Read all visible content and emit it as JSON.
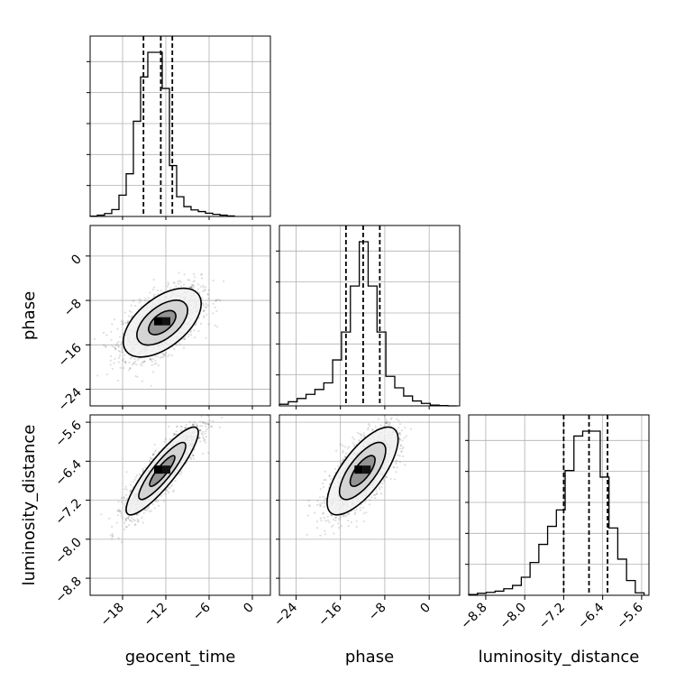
{
  "chart_data": {
    "type": "corner",
    "parameters": [
      {
        "name": "geocent_time",
        "range": [
          -22.5,
          2.5
        ],
        "ticks": [
          "−18",
          "−12",
          "−6",
          "0"
        ],
        "tick_values": [
          -18,
          -12,
          -6,
          0
        ],
        "quantiles": [
          -15.1,
          -12.7,
          -11.1
        ],
        "hist_bins": [
          -22.5,
          -21.5,
          -20.5,
          -19.5,
          -18.5,
          -17.5,
          -16.5,
          -15.5,
          -14.5,
          -13.5,
          -12.5,
          -11.5,
          -10.5,
          -9.5,
          -8.5,
          -7.5,
          -6.5,
          -5.5,
          -4.5,
          -3.5,
          -2.5
        ],
        "hist_counts": [
          0.2,
          0.8,
          1.8,
          4.2,
          13,
          26,
          58,
          85,
          100,
          100,
          78,
          31,
          12,
          6,
          4,
          3,
          2,
          1.3,
          0.8,
          0.3
        ]
      },
      {
        "name": "phase",
        "range": [
          -27,
          5.5
        ],
        "ticks": [
          "−24",
          "−16",
          "−8",
          "0"
        ],
        "tick_values": [
          -24,
          -16,
          -8,
          0
        ],
        "quantiles": [
          -15.0,
          -11.9,
          -8.9
        ],
        "hist_bins": [
          -27,
          -25.4,
          -23.8,
          -22.2,
          -20.6,
          -19,
          -17.4,
          -15.8,
          -14.2,
          -12.6,
          -11,
          -9.4,
          -7.8,
          -6.2,
          -4.6,
          -3,
          -1.4,
          0.2,
          1.8,
          3.4,
          5
        ],
        "hist_counts": [
          1,
          2.5,
          4.5,
          7,
          10,
          14,
          28,
          45,
          73,
          100,
          73,
          45,
          18,
          11,
          6,
          3,
          1.5,
          0.5,
          0.2,
          0
        ]
      },
      {
        "name": "luminosity_distance",
        "range": [
          -9.15,
          -5.45
        ],
        "ticks": [
          "−8.8",
          "−8.0",
          "−7.2",
          "−6.4",
          "−5.6"
        ],
        "tick_values": [
          -8.8,
          -8.0,
          -7.2,
          -6.4,
          -5.6
        ],
        "quantiles": [
          -7.2,
          -6.68,
          -6.3
        ],
        "hist_bins": [
          -9.15,
          -8.97,
          -8.79,
          -8.61,
          -8.43,
          -8.25,
          -8.07,
          -7.89,
          -7.71,
          -7.53,
          -7.35,
          -7.17,
          -6.99,
          -6.81,
          -6.63,
          -6.45,
          -6.27,
          -6.09,
          -5.91,
          -5.73,
          -5.55
        ],
        "hist_counts": [
          0.5,
          1.2,
          1.8,
          2.5,
          4,
          6,
          11,
          20,
          31,
          42,
          52,
          76,
          97,
          100,
          100,
          72,
          41,
          22,
          9,
          1.5
        ]
      }
    ],
    "pairs": [
      {
        "x": "geocent_time",
        "y": "phase",
        "center": [
          -12.5,
          -12.0
        ],
        "sd": [
          2.7,
          3.1
        ],
        "corr": 0.55
      },
      {
        "x": "geocent_time",
        "y": "luminosity_distance",
        "center": [
          -12.5,
          -6.6
        ],
        "sd": [
          2.5,
          0.45
        ],
        "corr": 0.88
      },
      {
        "x": "phase",
        "y": "luminosity_distance",
        "center": [
          -12.0,
          -6.6
        ],
        "sd": [
          3.2,
          0.45
        ],
        "corr": 0.72
      }
    ],
    "grid": true,
    "legend": "none"
  }
}
